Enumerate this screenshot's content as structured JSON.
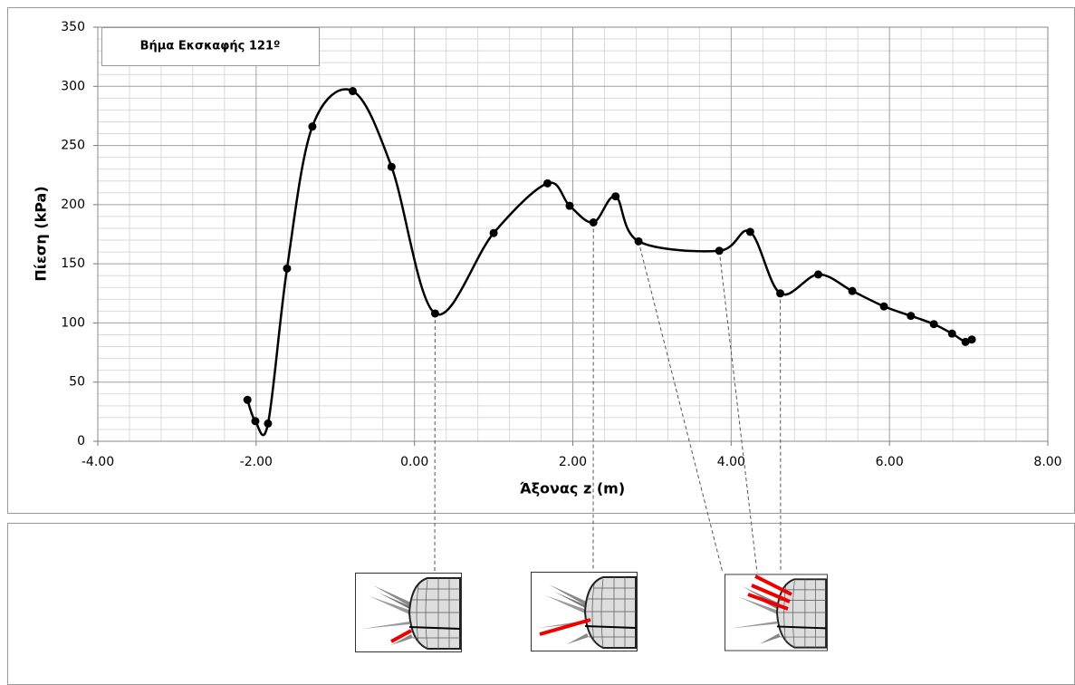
{
  "chart_data": {
    "type": "line",
    "annotation": "Βήμα Εκσκαφής 121º",
    "x_label": "Άξονας z (m)",
    "y_label": "Πίεση (kPa)",
    "x": [
      -2.11,
      -2.01,
      -1.85,
      -1.61,
      -1.29,
      -0.78,
      -0.29,
      0.26,
      1.0,
      1.68,
      1.96,
      2.26,
      2.54,
      2.83,
      3.85,
      4.24,
      4.62,
      5.1,
      5.53,
      5.93,
      6.27,
      6.56,
      6.79,
      6.96,
      7.04
    ],
    "values": [
      35,
      17,
      15,
      146,
      266,
      296,
      232,
      108,
      176,
      218,
      199,
      185,
      207,
      169,
      161,
      177,
      125,
      141,
      127,
      114,
      106,
      99,
      91,
      84,
      86
    ],
    "color": "#000000",
    "xlim": [
      -4,
      8
    ],
    "ylim": [
      0,
      350
    ],
    "xticks": [
      {
        "value": -4,
        "label": "-4.00"
      },
      {
        "value": -2,
        "label": "-2.00"
      },
      {
        "value": 0,
        "label": "0.00"
      },
      {
        "value": 2,
        "label": "2.00"
      },
      {
        "value": 4,
        "label": "4.00"
      },
      {
        "value": 6,
        "label": "6.00"
      },
      {
        "value": 8,
        "label": "8.00"
      }
    ],
    "yticks": [
      0,
      50,
      100,
      150,
      200,
      250,
      300,
      350
    ],
    "grid": true,
    "minor_grid": true
  }
}
